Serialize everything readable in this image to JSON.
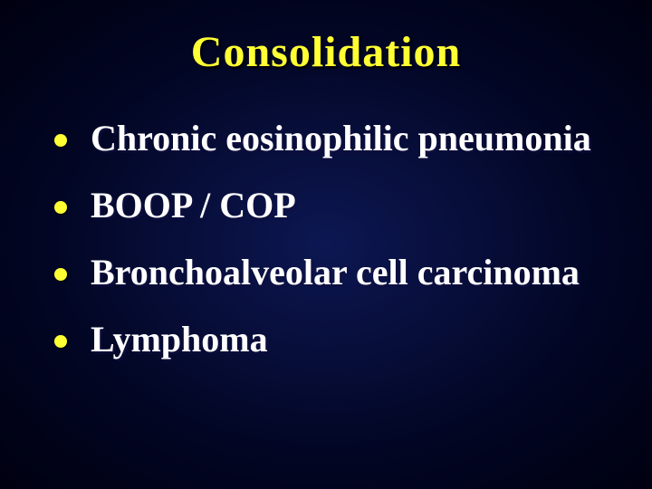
{
  "slide": {
    "title": "Consolidation",
    "title_color": "#ffff33",
    "title_fontsize": 48,
    "background_gradient": [
      "#0d1752",
      "#020624",
      "#000010"
    ],
    "bullet_color": "#ffff33",
    "text_color": "#ffffff",
    "text_fontsize": 40,
    "font_family": "Times New Roman",
    "bullets": [
      {
        "text": "Chronic eosinophilic pneumonia"
      },
      {
        "text": "BOOP / COP"
      },
      {
        "text": "Bronchoalveolar cell carcinoma"
      },
      {
        "text": "Lymphoma"
      }
    ]
  }
}
